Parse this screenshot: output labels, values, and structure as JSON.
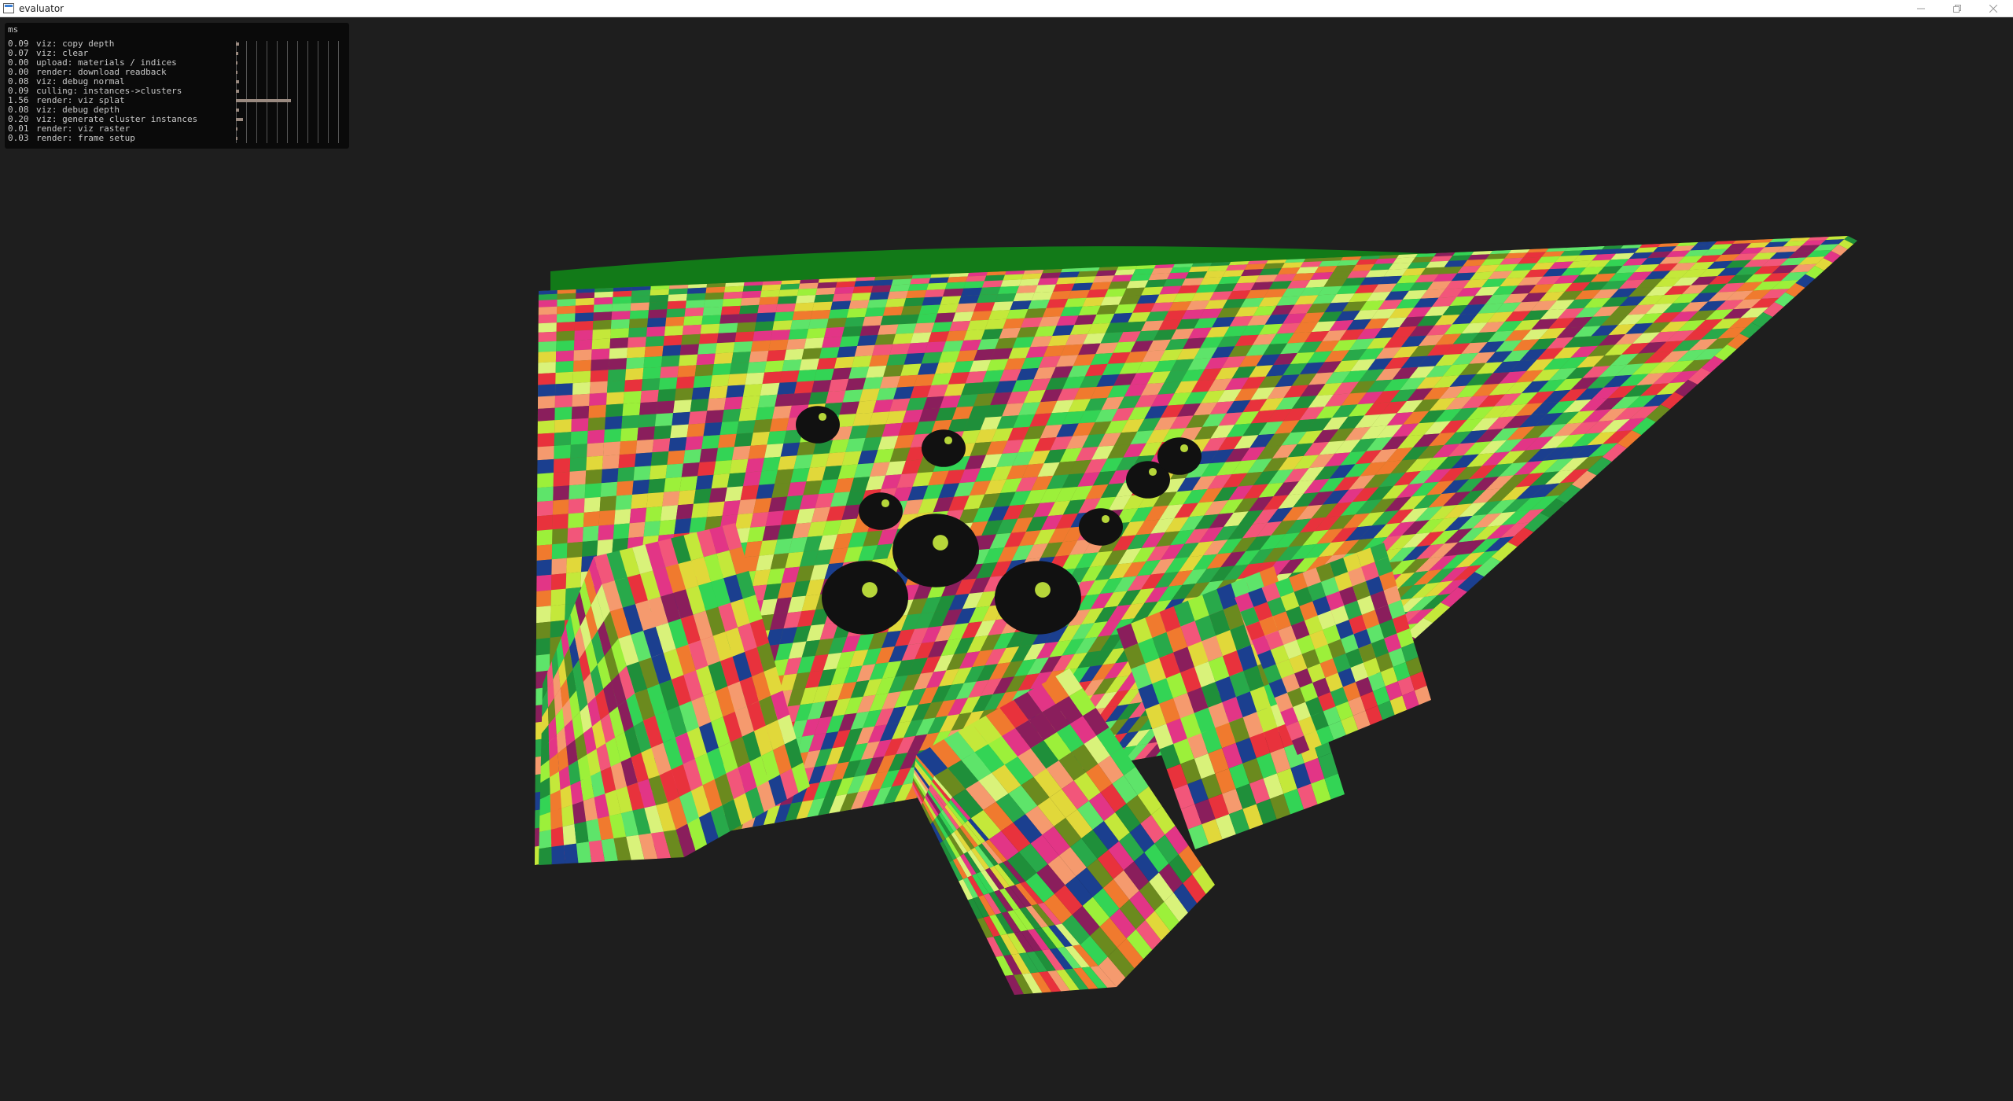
{
  "window": {
    "title": "evaluator",
    "minimize_icon": "minimize-icon",
    "maximize_icon": "restore-icon",
    "close_icon": "close-icon"
  },
  "profiler": {
    "unit": "ms",
    "rows": [
      {
        "value": "0.09",
        "label": "viz: copy depth"
      },
      {
        "value": "0.07",
        "label": "viz: clear"
      },
      {
        "value": "0.00",
        "label": "upload: materials / indices"
      },
      {
        "value": "0.00",
        "label": "render: download readback"
      },
      {
        "value": "0.08",
        "label": "viz: debug normal"
      },
      {
        "value": "0.09",
        "label": "culling: instances->clusters"
      },
      {
        "value": "1.56",
        "label": "render: viz splat"
      },
      {
        "value": "0.08",
        "label": "viz: debug depth"
      },
      {
        "value": "0.20",
        "label": "viz: generate cluster instances"
      },
      {
        "value": "0.01",
        "label": "render: viz raster"
      },
      {
        "value": "0.03",
        "label": "render: frame setup"
      }
    ]
  },
  "scene": {
    "background": "#1e1e1e",
    "ground_color": "#127a18",
    "palette": [
      "#e8323c",
      "#33d455",
      "#9cf03a",
      "#e1d83a",
      "#f07a2e",
      "#e23586",
      "#5ee46a",
      "#c4e83a",
      "#28a94a",
      "#8a1e5c",
      "#1b3f8f",
      "#d9f27a",
      "#f2567a",
      "#6b8a1e",
      "#f59a6e",
      "#1f8f3a"
    ]
  }
}
